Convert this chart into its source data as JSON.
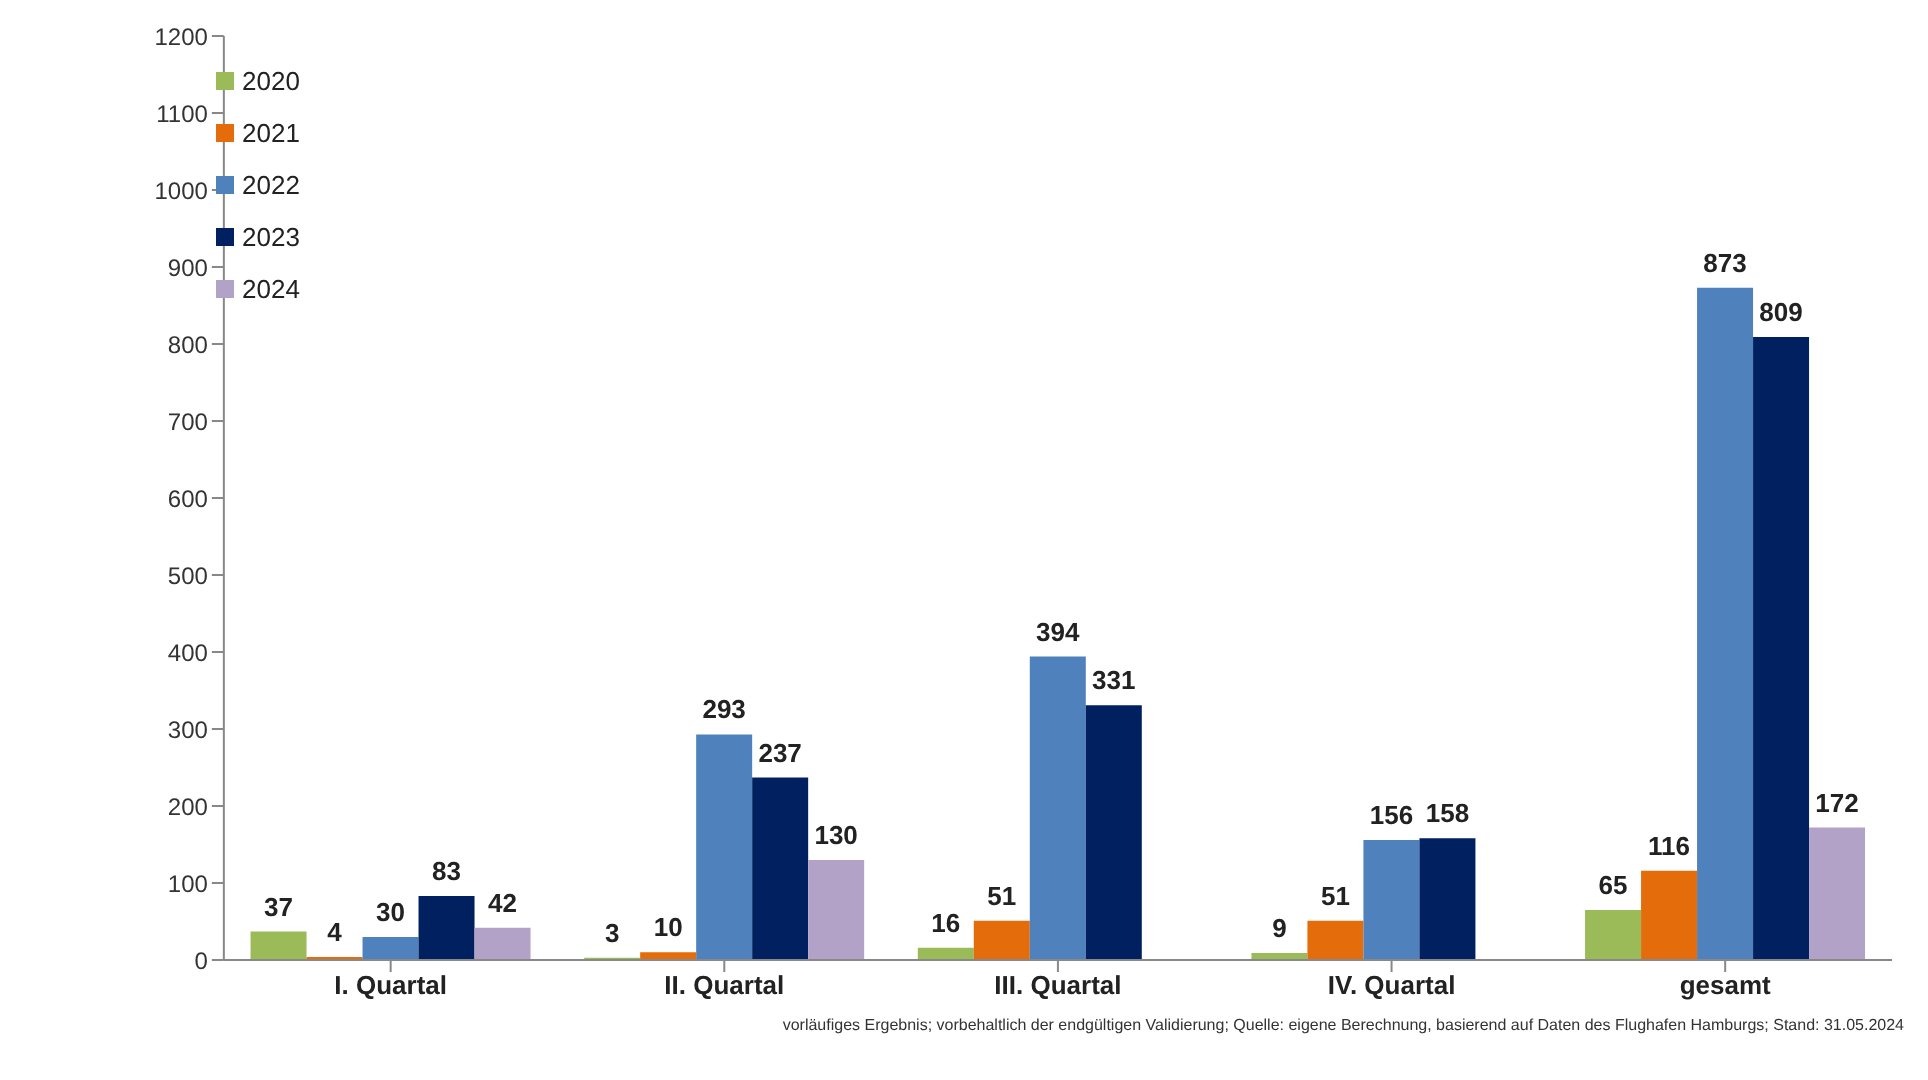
{
  "chart_data": {
    "type": "bar",
    "categories": [
      "I. Quartal",
      "II. Quartal",
      "III. Quartal",
      "IV. Quartal",
      "gesamt"
    ],
    "series": [
      {
        "name": "2020",
        "color": "#9bbb59",
        "values": [
          37,
          3,
          16,
          9,
          65
        ]
      },
      {
        "name": "2021",
        "color": "#e46c0a",
        "values": [
          4,
          10,
          51,
          51,
          116
        ]
      },
      {
        "name": "2022",
        "color": "#4f81bd",
        "values": [
          30,
          293,
          394,
          156,
          873
        ]
      },
      {
        "name": "2023",
        "color": "#002060",
        "values": [
          83,
          237,
          331,
          158,
          809
        ]
      },
      {
        "name": "2024",
        "color": "#b3a2c7",
        "values": [
          42,
          130,
          null,
          null,
          172
        ]
      }
    ],
    "ylim": [
      0,
      1200
    ],
    "yticks": [
      0,
      100,
      200,
      300,
      400,
      500,
      600,
      700,
      800,
      900,
      1000,
      1100,
      1200
    ],
    "grid": false,
    "legend": "top left",
    "data_labels": true,
    "annotations": [
      "vorläufiges Ergebnis; vorbehaltlich der endgültigen Validierung; Quelle: eigene Berechnung, basierend auf Daten des Flughafen Hamburgs; Stand: 31.05.2024"
    ]
  }
}
